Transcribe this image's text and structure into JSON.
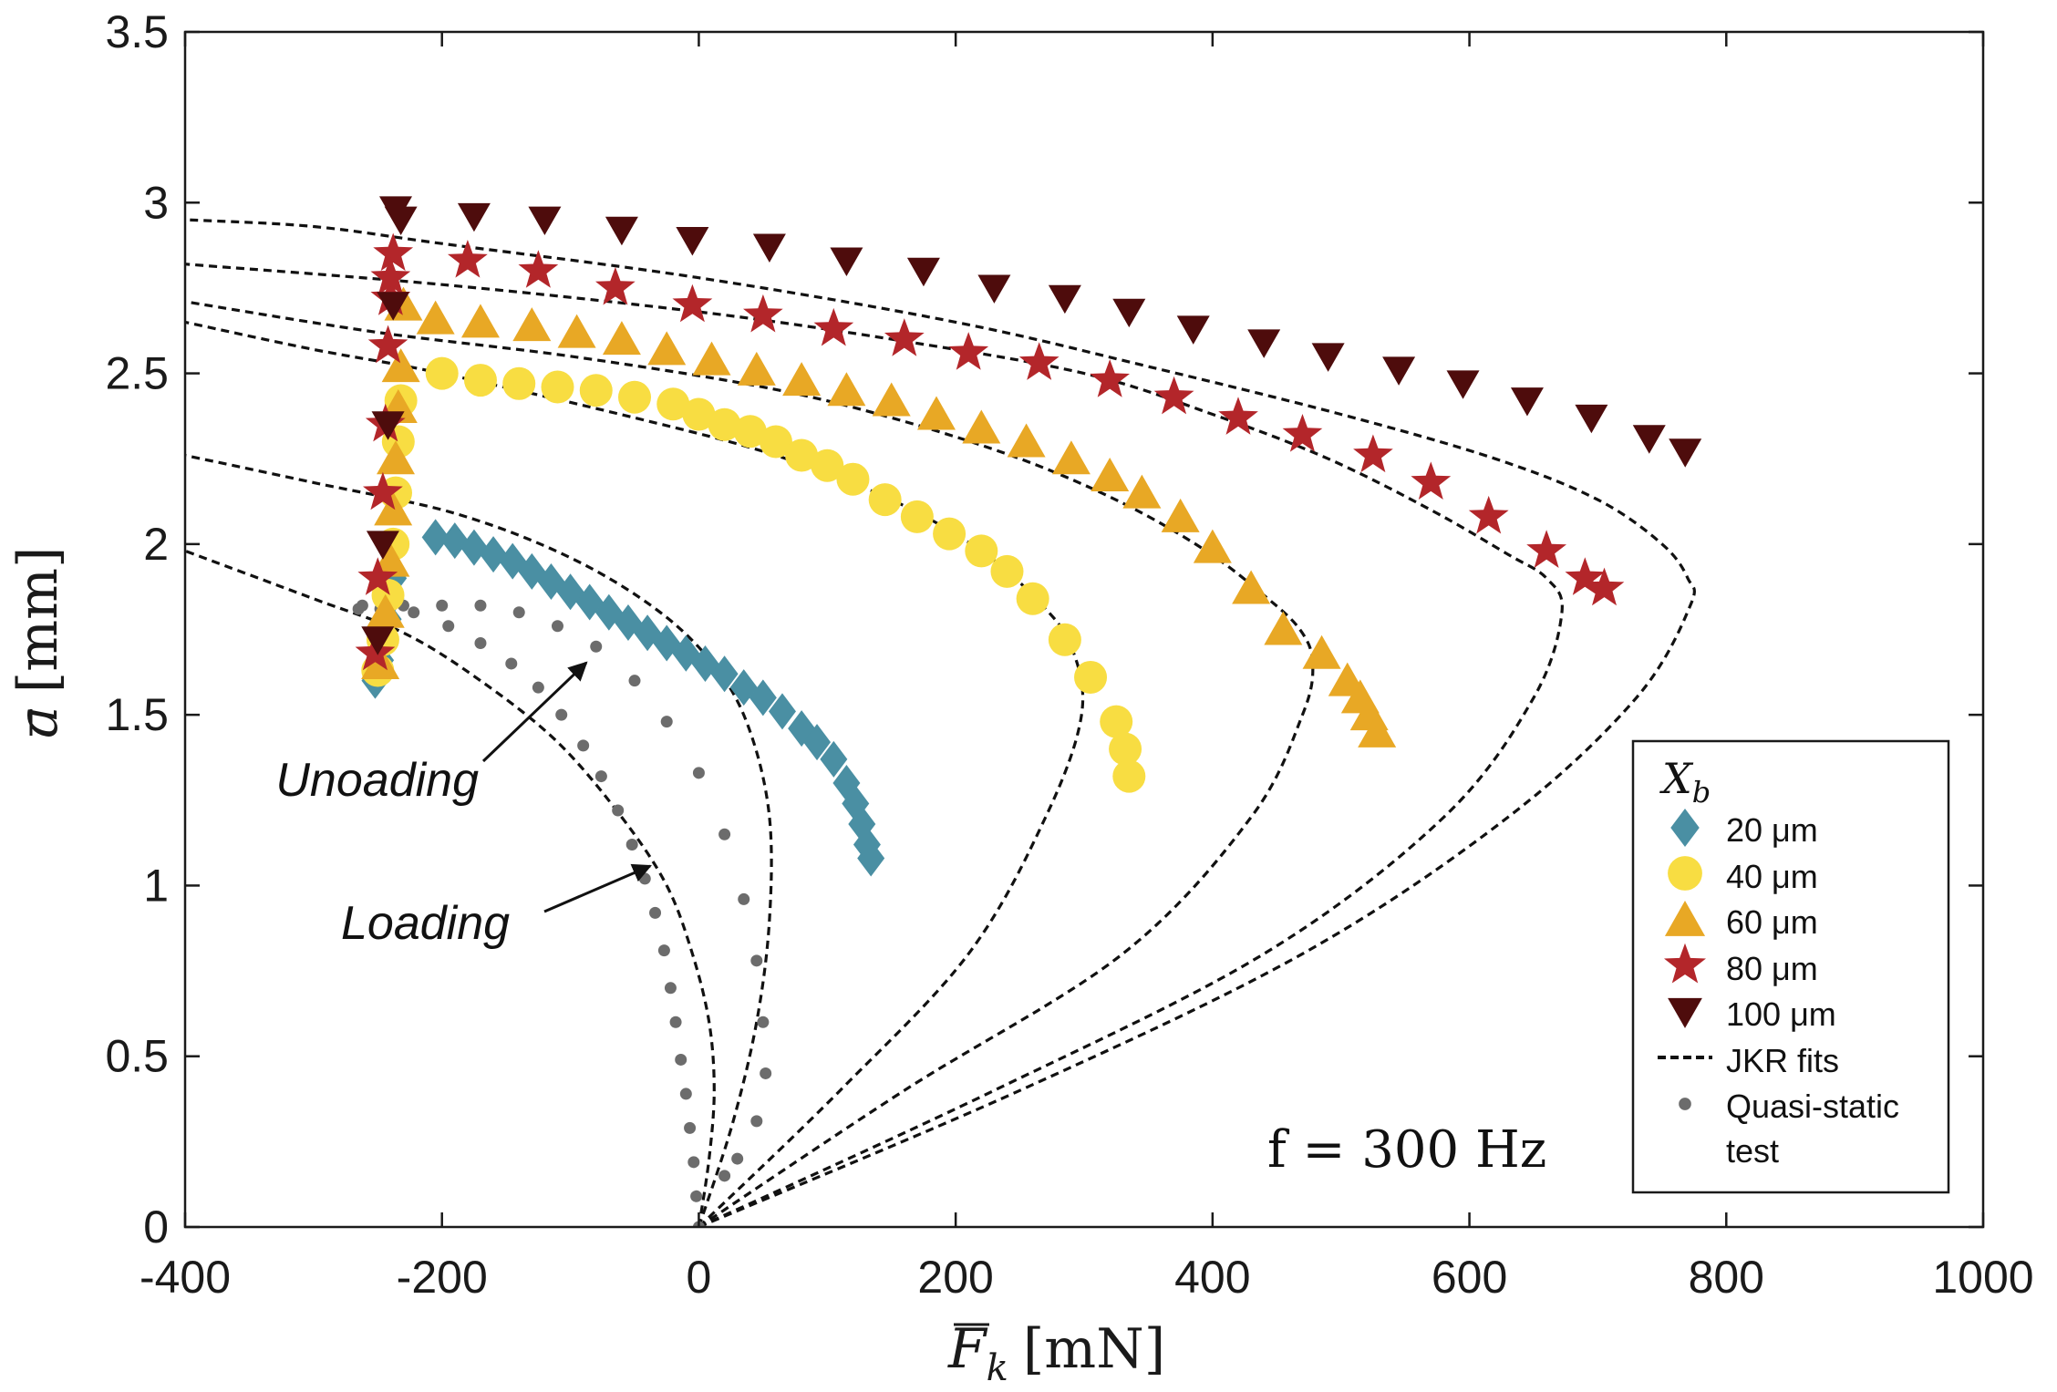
{
  "chart_data": {
    "type": "scatter",
    "xlabel_main": "F",
    "xlabel_sub": "k",
    "xlabel_unit": "[mN]",
    "ylabel_main": "a",
    "ylabel_unit": "[mm]",
    "xlim": [
      -400,
      1000
    ],
    "ylim": [
      0,
      3.5
    ],
    "xticks": [
      -400,
      -200,
      0,
      200,
      400,
      600,
      800,
      1000
    ],
    "yticks": [
      0,
      0.5,
      1,
      1.5,
      2,
      2.5,
      3,
      3.5
    ],
    "xtick_labels": [
      "-400",
      "-200",
      "0",
      "200",
      "400",
      "600",
      "800",
      "1000"
    ],
    "ytick_labels": [
      "0",
      "0.5",
      "1",
      "1.5",
      "2",
      "2.5",
      "3",
      "3.5"
    ],
    "annotations": {
      "unloading": "Unoading",
      "loading": "Loading",
      "frequency": "f = 300 Hz"
    },
    "legend": {
      "title_main": "X",
      "title_sub": "b",
      "position": "lower-right",
      "entries": [
        {
          "label": "20 μm",
          "marker": "diamond",
          "color": "#4a8fa3"
        },
        {
          "label": "40 μm",
          "marker": "circle",
          "color": "#f8dd42"
        },
        {
          "label": "60 μm",
          "marker": "triangle-up",
          "color": "#e8a825"
        },
        {
          "label": "80 μm",
          "marker": "star",
          "color": "#b3262a"
        },
        {
          "label": "100 μm",
          "marker": "triangle-down",
          "color": "#4e0c0c"
        },
        {
          "label": "JKR fits",
          "marker": "dash",
          "color": "#111111"
        },
        {
          "label": "Quasi-static",
          "label2": "test",
          "marker": "dot",
          "color": "#6c6c6c"
        }
      ]
    },
    "series": [
      {
        "name": "20 μm",
        "marker": "diamond",
        "color": "#4a8fa3",
        "points": [
          [
            -252,
            1.6
          ],
          [
            -248,
            1.66
          ],
          [
            -245,
            1.72
          ],
          [
            -242,
            1.78
          ],
          [
            -240,
            1.84
          ],
          [
            -238,
            1.9
          ],
          [
            -205,
            2.02
          ],
          [
            -190,
            2.01
          ],
          [
            -175,
            1.99
          ],
          [
            -160,
            1.97
          ],
          [
            -145,
            1.95
          ],
          [
            -130,
            1.92
          ],
          [
            -115,
            1.89
          ],
          [
            -100,
            1.86
          ],
          [
            -85,
            1.83
          ],
          [
            -70,
            1.8
          ],
          [
            -55,
            1.77
          ],
          [
            -40,
            1.74
          ],
          [
            -25,
            1.71
          ],
          [
            -10,
            1.68
          ],
          [
            5,
            1.65
          ],
          [
            20,
            1.62
          ],
          [
            35,
            1.58
          ],
          [
            50,
            1.55
          ],
          [
            65,
            1.51
          ],
          [
            80,
            1.46
          ],
          [
            92,
            1.42
          ],
          [
            105,
            1.37
          ],
          [
            115,
            1.3
          ],
          [
            122,
            1.24
          ],
          [
            127,
            1.18
          ],
          [
            131,
            1.12
          ],
          [
            134,
            1.08
          ]
        ]
      },
      {
        "name": "40 μm",
        "marker": "circle",
        "color": "#f8dd42",
        "points": [
          [
            -250,
            1.63
          ],
          [
            -246,
            1.72
          ],
          [
            -242,
            1.85
          ],
          [
            -238,
            2.0
          ],
          [
            -236,
            2.15
          ],
          [
            -234,
            2.3
          ],
          [
            -232,
            2.42
          ],
          [
            -200,
            2.5
          ],
          [
            -170,
            2.48
          ],
          [
            -140,
            2.47
          ],
          [
            -110,
            2.46
          ],
          [
            -80,
            2.45
          ],
          [
            -50,
            2.43
          ],
          [
            -20,
            2.41
          ],
          [
            0,
            2.38
          ],
          [
            20,
            2.35
          ],
          [
            40,
            2.33
          ],
          [
            60,
            2.3
          ],
          [
            80,
            2.26
          ],
          [
            100,
            2.23
          ],
          [
            120,
            2.19
          ],
          [
            145,
            2.13
          ],
          [
            170,
            2.08
          ],
          [
            195,
            2.03
          ],
          [
            220,
            1.98
          ],
          [
            240,
            1.92
          ],
          [
            260,
            1.84
          ],
          [
            285,
            1.72
          ],
          [
            305,
            1.61
          ],
          [
            325,
            1.48
          ],
          [
            332,
            1.4
          ],
          [
            335,
            1.32
          ]
        ]
      },
      {
        "name": "60 μm",
        "marker": "triangle-up",
        "color": "#e8a825",
        "points": [
          [
            -248,
            1.65
          ],
          [
            -244,
            1.8
          ],
          [
            -240,
            1.95
          ],
          [
            -238,
            2.1
          ],
          [
            -236,
            2.25
          ],
          [
            -234,
            2.4
          ],
          [
            -232,
            2.52
          ],
          [
            -230,
            2.7
          ],
          [
            -205,
            2.66
          ],
          [
            -170,
            2.65
          ],
          [
            -130,
            2.64
          ],
          [
            -95,
            2.62
          ],
          [
            -60,
            2.6
          ],
          [
            -25,
            2.57
          ],
          [
            10,
            2.54
          ],
          [
            45,
            2.51
          ],
          [
            80,
            2.48
          ],
          [
            115,
            2.45
          ],
          [
            150,
            2.42
          ],
          [
            185,
            2.38
          ],
          [
            220,
            2.34
          ],
          [
            255,
            2.3
          ],
          [
            290,
            2.25
          ],
          [
            320,
            2.2
          ],
          [
            345,
            2.15
          ],
          [
            375,
            2.08
          ],
          [
            400,
            1.99
          ],
          [
            430,
            1.87
          ],
          [
            455,
            1.75
          ],
          [
            485,
            1.68
          ],
          [
            505,
            1.6
          ],
          [
            515,
            1.55
          ],
          [
            522,
            1.5
          ],
          [
            528,
            1.45
          ]
        ]
      },
      {
        "name": "80 μm",
        "marker": "star",
        "color": "#b3262a",
        "points": [
          [
            -252,
            1.68
          ],
          [
            -250,
            1.9
          ],
          [
            -246,
            2.15
          ],
          [
            -244,
            2.35
          ],
          [
            -242,
            2.58
          ],
          [
            -240,
            2.72
          ],
          [
            -238,
            2.85
          ],
          [
            -240,
            2.78
          ],
          [
            -180,
            2.83
          ],
          [
            -125,
            2.8
          ],
          [
            -65,
            2.75
          ],
          [
            -5,
            2.7
          ],
          [
            50,
            2.67
          ],
          [
            105,
            2.63
          ],
          [
            160,
            2.6
          ],
          [
            210,
            2.56
          ],
          [
            265,
            2.53
          ],
          [
            320,
            2.48
          ],
          [
            370,
            2.43
          ],
          [
            420,
            2.37
          ],
          [
            470,
            2.32
          ],
          [
            525,
            2.26
          ],
          [
            570,
            2.18
          ],
          [
            615,
            2.08
          ],
          [
            660,
            1.98
          ],
          [
            690,
            1.9
          ],
          [
            705,
            1.87
          ]
        ]
      },
      {
        "name": "100 μm",
        "marker": "triangle-down",
        "color": "#4e0c0c",
        "points": [
          [
            -250,
            1.72
          ],
          [
            -246,
            2.0
          ],
          [
            -242,
            2.35
          ],
          [
            -238,
            2.7
          ],
          [
            -236,
            2.98
          ],
          [
            -232,
            2.95
          ],
          [
            -175,
            2.96
          ],
          [
            -120,
            2.95
          ],
          [
            -60,
            2.92
          ],
          [
            -5,
            2.89
          ],
          [
            55,
            2.87
          ],
          [
            115,
            2.83
          ],
          [
            175,
            2.8
          ],
          [
            230,
            2.75
          ],
          [
            285,
            2.72
          ],
          [
            335,
            2.68
          ],
          [
            385,
            2.63
          ],
          [
            440,
            2.59
          ],
          [
            490,
            2.55
          ],
          [
            545,
            2.51
          ],
          [
            595,
            2.47
          ],
          [
            645,
            2.42
          ],
          [
            695,
            2.37
          ],
          [
            740,
            2.31
          ],
          [
            768,
            2.27
          ]
        ]
      },
      {
        "name": "Quasi-static test",
        "marker": "dot",
        "color": "#6c6c6c",
        "points": [
          [
            0,
            0
          ],
          [
            -2,
            0.09
          ],
          [
            -4,
            0.19
          ],
          [
            -7,
            0.29
          ],
          [
            -10,
            0.39
          ],
          [
            -14,
            0.49
          ],
          [
            -18,
            0.6
          ],
          [
            -22,
            0.7
          ],
          [
            -27,
            0.81
          ],
          [
            -34,
            0.92
          ],
          [
            -42,
            1.02
          ],
          [
            -52,
            1.12
          ],
          [
            -63,
            1.22
          ],
          [
            -76,
            1.32
          ],
          [
            -90,
            1.41
          ],
          [
            -107,
            1.5
          ],
          [
            -125,
            1.58
          ],
          [
            -146,
            1.65
          ],
          [
            -170,
            1.71
          ],
          [
            -195,
            1.76
          ],
          [
            -222,
            1.8
          ],
          [
            -248,
            1.81
          ],
          [
            -265,
            1.81
          ],
          [
            -262,
            1.82
          ],
          [
            -230,
            1.82
          ],
          [
            -200,
            1.82
          ],
          [
            -170,
            1.82
          ],
          [
            -140,
            1.8
          ],
          [
            -110,
            1.76
          ],
          [
            -80,
            1.7
          ],
          [
            -50,
            1.6
          ],
          [
            -25,
            1.48
          ],
          [
            0,
            1.33
          ],
          [
            20,
            1.15
          ],
          [
            35,
            0.96
          ],
          [
            45,
            0.78
          ],
          [
            50,
            0.6
          ],
          [
            52,
            0.45
          ],
          [
            45,
            0.31
          ],
          [
            30,
            0.2
          ],
          [
            20,
            0.15
          ]
        ]
      }
    ],
    "jkr_fits": [
      {
        "name": "20 μm fit",
        "points": [
          [
            0,
            0
          ],
          [
            26,
            0.3
          ],
          [
            45,
            0.6
          ],
          [
            55,
            0.9
          ],
          [
            55,
            1.2
          ],
          [
            40,
            1.45
          ],
          [
            15,
            1.63
          ],
          [
            -30,
            1.8
          ],
          [
            -100,
            1.96
          ],
          [
            -190,
            2.09
          ],
          [
            -300,
            2.18
          ],
          [
            -400,
            2.26
          ]
        ]
      },
      {
        "name": "40 μm fit",
        "points": [
          [
            0,
            0
          ],
          [
            110,
            0.4
          ],
          [
            210,
            0.8
          ],
          [
            270,
            1.2
          ],
          [
            298,
            1.5
          ],
          [
            290,
            1.7
          ],
          [
            265,
            1.83
          ],
          [
            220,
            1.98
          ],
          [
            150,
            2.13
          ],
          [
            60,
            2.26
          ],
          [
            -50,
            2.37
          ],
          [
            -200,
            2.5
          ],
          [
            -300,
            2.57
          ],
          [
            -400,
            2.65
          ]
        ]
      },
      {
        "name": "60 μm fit",
        "points": [
          [
            0,
            0
          ],
          [
            160,
            0.4
          ],
          [
            330,
            0.8
          ],
          [
            430,
            1.2
          ],
          [
            470,
            1.5
          ],
          [
            478,
            1.65
          ],
          [
            468,
            1.75
          ],
          [
            440,
            1.85
          ],
          [
            395,
            1.98
          ],
          [
            330,
            2.12
          ],
          [
            250,
            2.25
          ],
          [
            150,
            2.37
          ],
          [
            50,
            2.46
          ],
          [
            -100,
            2.55
          ],
          [
            -250,
            2.62
          ],
          [
            -400,
            2.71
          ]
        ]
      },
      {
        "name": "80 μm fit",
        "points": [
          [
            0,
            0
          ],
          [
            230,
            0.4
          ],
          [
            440,
            0.8
          ],
          [
            580,
            1.2
          ],
          [
            650,
            1.55
          ],
          [
            672,
            1.8
          ],
          [
            660,
            1.9
          ],
          [
            630,
            1.97
          ],
          [
            570,
            2.1
          ],
          [
            490,
            2.25
          ],
          [
            400,
            2.38
          ],
          [
            300,
            2.5
          ],
          [
            150,
            2.6
          ],
          [
            0,
            2.68
          ],
          [
            -200,
            2.76
          ],
          [
            -400,
            2.82
          ]
        ]
      },
      {
        "name": "100 μm fit",
        "points": [
          [
            0,
            0
          ],
          [
            250,
            0.4
          ],
          [
            470,
            0.8
          ],
          [
            630,
            1.2
          ],
          [
            730,
            1.55
          ],
          [
            772,
            1.82
          ],
          [
            770,
            1.9
          ],
          [
            750,
            2.0
          ],
          [
            700,
            2.13
          ],
          [
            620,
            2.25
          ],
          [
            500,
            2.38
          ],
          [
            350,
            2.52
          ],
          [
            200,
            2.65
          ],
          [
            0,
            2.78
          ],
          [
            -200,
            2.88
          ],
          [
            -300,
            2.93
          ],
          [
            -400,
            2.95
          ]
        ]
      },
      {
        "name": "quasi-static fit",
        "points": [
          [
            0,
            0
          ],
          [
            8,
            0.2
          ],
          [
            12,
            0.4
          ],
          [
            8,
            0.6
          ],
          [
            -5,
            0.8
          ],
          [
            -25,
            1.0
          ],
          [
            -60,
            1.2
          ],
          [
            -110,
            1.42
          ],
          [
            -170,
            1.6
          ],
          [
            -230,
            1.74
          ],
          [
            -300,
            1.84
          ],
          [
            -400,
            1.98
          ]
        ]
      }
    ]
  }
}
